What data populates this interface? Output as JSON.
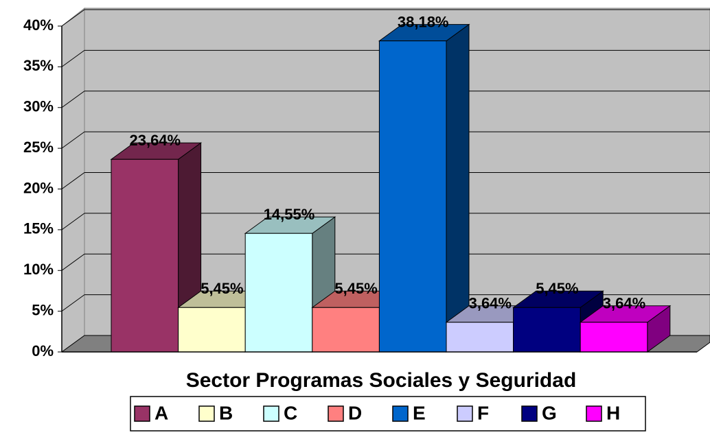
{
  "chart_data": {
    "type": "bar3d",
    "categories": [
      "Sector Programas Sociales y Seguridad"
    ],
    "series": [
      {
        "name": "A",
        "color": "#993366",
        "values": [
          23.64
        ],
        "value_labels": [
          "23,64%"
        ]
      },
      {
        "name": "B",
        "color": "#ffffcc",
        "values": [
          5.45
        ],
        "value_labels": [
          "5,45%"
        ]
      },
      {
        "name": "C",
        "color": "#ccffff",
        "values": [
          14.55
        ],
        "value_labels": [
          "14,55%"
        ]
      },
      {
        "name": "D",
        "color": "#ff8080",
        "values": [
          5.45
        ],
        "value_labels": [
          "5,45%"
        ]
      },
      {
        "name": "E",
        "color": "#0066cc",
        "values": [
          38.18
        ],
        "value_labels": [
          "38,18%"
        ]
      },
      {
        "name": "F",
        "color": "#ccccff",
        "values": [
          3.64
        ],
        "value_labels": [
          "3,64%"
        ]
      },
      {
        "name": "G",
        "color": "#000080",
        "values": [
          5.45
        ],
        "value_labels": [
          "5,45%"
        ]
      },
      {
        "name": "H",
        "color": "#ff00ff",
        "values": [
          3.64
        ],
        "value_labels": [
          "3,64%"
        ]
      }
    ],
    "ylim": [
      0,
      40
    ],
    "yticks": [
      {
        "value": 0,
        "label": "0%"
      },
      {
        "value": 5,
        "label": "5%"
      },
      {
        "value": 10,
        "label": "10%"
      },
      {
        "value": 15,
        "label": "15%"
      },
      {
        "value": 20,
        "label": "20%"
      },
      {
        "value": 25,
        "label": "25%"
      },
      {
        "value": 30,
        "label": "30%"
      },
      {
        "value": 35,
        "label": "35%"
      },
      {
        "value": 40,
        "label": "40%"
      }
    ],
    "grid": true,
    "legend": "bottom"
  }
}
